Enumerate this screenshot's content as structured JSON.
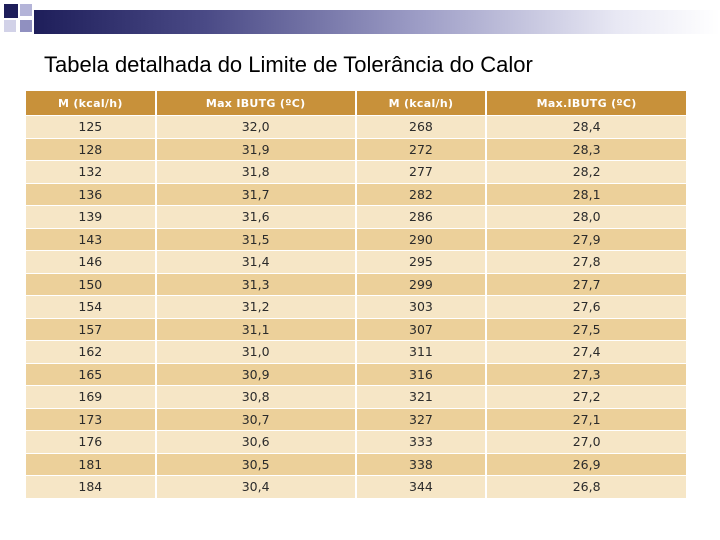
{
  "colors": {
    "header_band_dark": "#1e1e5a",
    "table_header_bg": "#c8913a",
    "row_light": "#f6e6c6",
    "row_dark": "#ecd09a"
  },
  "title": "Tabela detalhada do Limite de Tolerância do Calor",
  "table": {
    "headers": [
      "M (kcal/h)",
      "Max IBUTG (ºC)",
      "M (kcal/h)",
      "Max.IBUTG (ºC)"
    ],
    "rows": [
      [
        "125",
        "32,0",
        "268",
        "28,4"
      ],
      [
        "128",
        "31,9",
        "272",
        "28,3"
      ],
      [
        "132",
        "31,8",
        "277",
        "28,2"
      ],
      [
        "136",
        "31,7",
        "282",
        "28,1"
      ],
      [
        "139",
        "31,6",
        "286",
        "28,0"
      ],
      [
        "143",
        "31,5",
        "290",
        "27,9"
      ],
      [
        "146",
        "31,4",
        "295",
        "27,8"
      ],
      [
        "150",
        "31,3",
        "299",
        "27,7"
      ],
      [
        "154",
        "31,2",
        "303",
        "27,6"
      ],
      [
        "157",
        "31,1",
        "307",
        "27,5"
      ],
      [
        "162",
        "31,0",
        "311",
        "27,4"
      ],
      [
        "165",
        "30,9",
        "316",
        "27,3"
      ],
      [
        "169",
        "30,8",
        "321",
        "27,2"
      ],
      [
        "173",
        "30,7",
        "327",
        "27,1"
      ],
      [
        "176",
        "30,6",
        "333",
        "27,0"
      ],
      [
        "181",
        "30,5",
        "338",
        "26,9"
      ],
      [
        "184",
        "30,4",
        "344",
        "26,8"
      ]
    ]
  }
}
